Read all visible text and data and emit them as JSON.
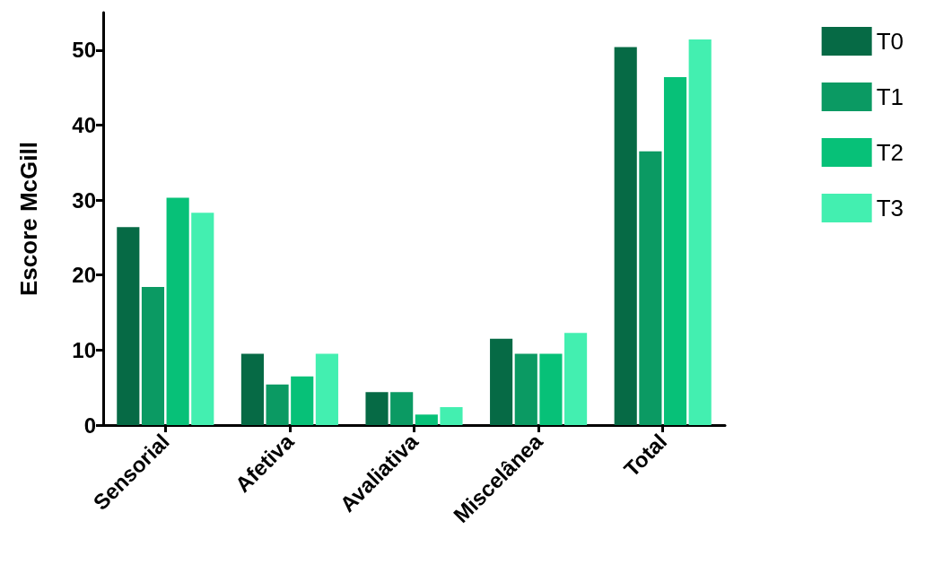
{
  "chart_data": {
    "type": "bar",
    "ylabel": "Escore McGill",
    "categories": [
      "Sensorial",
      "Afetiva",
      "Avaliativa",
      "Miscelânea",
      "Total"
    ],
    "series": [
      {
        "name": "T0",
        "color": "#066a45",
        "values": [
          26.4,
          9.5,
          4.4,
          11.5,
          50.4
        ]
      },
      {
        "name": "T1",
        "color": "#0b9a63",
        "values": [
          18.4,
          5.4,
          4.4,
          9.5,
          36.5
        ]
      },
      {
        "name": "T2",
        "color": "#07c178",
        "values": [
          30.3,
          6.5,
          1.4,
          9.5,
          46.4
        ]
      },
      {
        "name": "T3",
        "color": "#43efb0",
        "values": [
          28.3,
          9.5,
          2.4,
          12.3,
          51.4
        ]
      }
    ],
    "ylim": [
      0,
      55
    ],
    "yticks": [
      0,
      10,
      20,
      30,
      40,
      50
    ],
    "grid": false,
    "legend": "top right"
  }
}
